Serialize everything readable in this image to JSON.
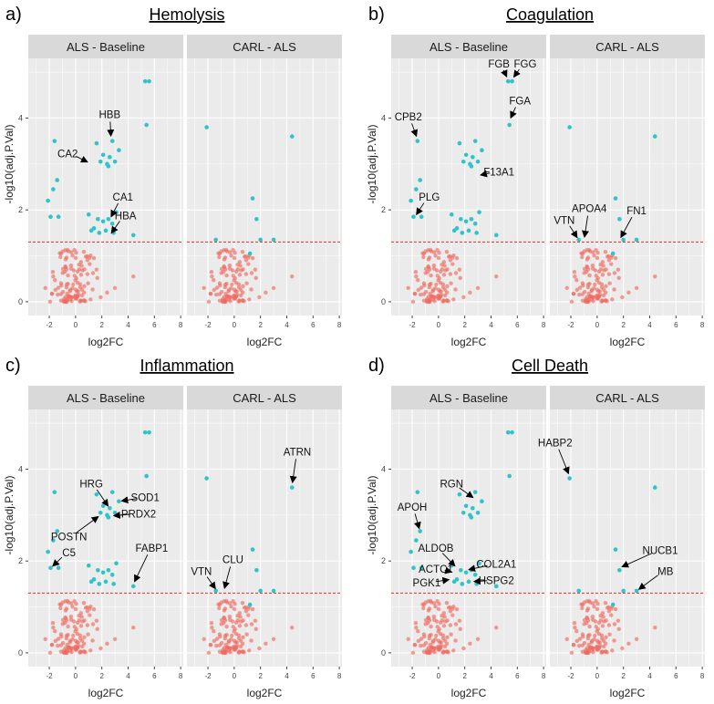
{
  "colors": {
    "sig": "#2ec4c8",
    "nonsig": "#ee6a60",
    "threshold": "#e0302a",
    "panel_bg": "#ebebeb",
    "strip_bg": "#d9d9d9",
    "grid": "#ffffff"
  },
  "facet_labels": [
    "ALS - Baseline",
    "CARL - ALS"
  ],
  "threshold_y": 1.3,
  "chart_data": [
    {
      "type": "scatter",
      "letter": "a)",
      "title": "Hemolysis",
      "xlabel": "log2FC",
      "ylabel": "-log10(adj.P.Val)",
      "xlim": [
        -3.6,
        8.2
      ],
      "ylim": [
        -0.3,
        5.3
      ],
      "xticks": [
        -2,
        0,
        2,
        4,
        6,
        8
      ],
      "yticks": [
        0,
        2,
        4
      ],
      "facets": [
        {
          "label": "ALS - Baseline",
          "points": [
            [
              5.3,
              4.8
            ],
            [
              5.6,
              4.8
            ],
            [
              5.4,
              3.85
            ],
            [
              -1.6,
              3.5
            ],
            [
              1.6,
              3.45
            ],
            [
              2.8,
              3.5
            ],
            [
              3.3,
              3.3
            ],
            [
              2.1,
              3.2
            ],
            [
              2.6,
              3.15
            ],
            [
              3.0,
              3.05
            ],
            [
              -1.4,
              2.65
            ],
            [
              -1.7,
              2.45
            ],
            [
              2.4,
              3.0
            ],
            [
              1.9,
              3.05
            ],
            [
              2.5,
              2.95
            ],
            [
              -2.1,
              2.2
            ],
            [
              -1.9,
              1.85
            ],
            [
              -1.3,
              1.85
            ],
            [
              1.0,
              1.9
            ],
            [
              1.4,
              1.6
            ],
            [
              1.7,
              1.8
            ],
            [
              2.1,
              1.75
            ],
            [
              2.5,
              1.8
            ],
            [
              2.8,
              1.7
            ],
            [
              1.2,
              1.55
            ],
            [
              1.8,
              1.5
            ],
            [
              2.3,
              1.55
            ],
            [
              2.9,
              1.5
            ],
            [
              3.1,
              1.95
            ],
            [
              4.4,
              1.45
            ]
          ],
          "labels": [
            {
              "text": "HBB",
              "x": 2.6,
              "y": 4.0,
              "tx": 2.7,
              "ty": 3.55
            },
            {
              "text": "CA2",
              "x": -0.6,
              "y": 3.15,
              "tx": 1.1,
              "ty": 3.02
            },
            {
              "text": "CA1",
              "x": 3.6,
              "y": 2.2,
              "tx": 2.6,
              "ty": 1.8
            },
            {
              "text": "HBA",
              "x": 3.8,
              "y": 1.8,
              "tx": 2.6,
              "ty": 1.45
            }
          ]
        },
        {
          "label": "CARL - ALS",
          "points": [
            [
              -2.1,
              3.8
            ],
            [
              4.4,
              3.6
            ],
            [
              1.4,
              2.25
            ],
            [
              1.7,
              1.8
            ],
            [
              2.0,
              1.35
            ],
            [
              3.0,
              1.35
            ],
            [
              1.2,
              1.05
            ],
            [
              -1.4,
              1.35
            ]
          ],
          "labels": []
        }
      ]
    },
    {
      "type": "scatter",
      "letter": "b)",
      "title": "Coagulation",
      "xlabel": "log2FC",
      "ylabel": "-log10(adj.P.Val)",
      "xlim": [
        -3.6,
        8.2
      ],
      "ylim": [
        -0.3,
        5.3
      ],
      "xticks": [
        -2,
        0,
        2,
        4,
        6,
        8
      ],
      "yticks": [
        0,
        2,
        4
      ],
      "facets": [
        {
          "label": "ALS - Baseline",
          "points": [
            [
              5.3,
              4.8
            ],
            [
              5.6,
              4.8
            ],
            [
              5.4,
              3.85
            ],
            [
              -1.6,
              3.5
            ],
            [
              1.6,
              3.45
            ],
            [
              2.8,
              3.5
            ],
            [
              3.3,
              3.3
            ],
            [
              2.1,
              3.2
            ],
            [
              2.6,
              3.15
            ],
            [
              3.0,
              3.05
            ],
            [
              -1.4,
              2.65
            ],
            [
              -1.7,
              2.45
            ],
            [
              2.4,
              3.0
            ],
            [
              1.9,
              3.05
            ],
            [
              2.5,
              2.95
            ],
            [
              -2.1,
              2.2
            ],
            [
              -1.9,
              1.85
            ],
            [
              -1.3,
              1.85
            ],
            [
              1.0,
              1.9
            ],
            [
              1.4,
              1.6
            ],
            [
              1.7,
              1.8
            ],
            [
              2.1,
              1.75
            ],
            [
              2.5,
              1.8
            ],
            [
              2.8,
              1.7
            ],
            [
              1.2,
              1.55
            ],
            [
              1.8,
              1.5
            ],
            [
              2.3,
              1.55
            ],
            [
              2.9,
              1.5
            ],
            [
              3.1,
              1.95
            ],
            [
              4.4,
              1.45
            ]
          ],
          "labels": [
            {
              "text": "FGB",
              "x": 4.6,
              "y": 5.1,
              "tx": 5.3,
              "ty": 4.85
            },
            {
              "text": "FGG",
              "x": 6.6,
              "y": 5.1,
              "tx": 5.6,
              "ty": 4.85
            },
            {
              "text": "FGA",
              "x": 6.2,
              "y": 4.3,
              "tx": 5.4,
              "ty": 3.95
            },
            {
              "text": "CPB2",
              "x": -2.3,
              "y": 3.95,
              "tx": -1.6,
              "ty": 3.55
            },
            {
              "text": "F13A1",
              "x": 4.6,
              "y": 2.75,
              "tx": 3.0,
              "ty": 2.75
            },
            {
              "text": "PLG",
              "x": -0.7,
              "y": 2.2,
              "tx": -1.8,
              "ty": 1.85
            }
          ]
        },
        {
          "label": "CARL - ALS",
          "points": [
            [
              -2.1,
              3.8
            ],
            [
              4.4,
              3.6
            ],
            [
              1.4,
              2.25
            ],
            [
              1.7,
              1.8
            ],
            [
              2.0,
              1.35
            ],
            [
              3.0,
              1.35
            ],
            [
              1.2,
              1.05
            ],
            [
              -1.4,
              1.35
            ]
          ],
          "labels": [
            {
              "text": "APOA4",
              "x": -0.6,
              "y": 1.95,
              "tx": -1.0,
              "ty": 1.35
            },
            {
              "text": "VTN",
              "x": -2.5,
              "y": 1.7,
              "tx": -1.4,
              "ty": 1.35
            },
            {
              "text": "FN1",
              "x": 3.0,
              "y": 1.9,
              "tx": 1.7,
              "ty": 1.35
            }
          ]
        }
      ]
    },
    {
      "type": "scatter",
      "letter": "c)",
      "title": "Inflammation",
      "xlabel": "log2FC",
      "ylabel": "-log10(adj.P.Val)",
      "xlim": [
        -3.6,
        8.2
      ],
      "ylim": [
        -0.3,
        5.3
      ],
      "xticks": [
        -2,
        0,
        2,
        4,
        6,
        8
      ],
      "yticks": [
        0,
        2,
        4
      ],
      "facets": [
        {
          "label": "ALS - Baseline",
          "points": [
            [
              5.3,
              4.8
            ],
            [
              5.6,
              4.8
            ],
            [
              5.4,
              3.85
            ],
            [
              -1.6,
              3.5
            ],
            [
              1.6,
              3.45
            ],
            [
              2.8,
              3.5
            ],
            [
              3.3,
              3.3
            ],
            [
              2.1,
              3.2
            ],
            [
              2.6,
              3.15
            ],
            [
              3.0,
              3.05
            ],
            [
              -1.4,
              2.65
            ],
            [
              -1.7,
              2.45
            ],
            [
              2.4,
              3.0
            ],
            [
              1.9,
              3.05
            ],
            [
              2.5,
              2.95
            ],
            [
              -2.1,
              2.2
            ],
            [
              -1.9,
              1.85
            ],
            [
              -1.3,
              1.85
            ],
            [
              1.0,
              1.9
            ],
            [
              1.4,
              1.6
            ],
            [
              1.7,
              1.8
            ],
            [
              2.1,
              1.75
            ],
            [
              2.5,
              1.8
            ],
            [
              2.8,
              1.7
            ],
            [
              1.2,
              1.55
            ],
            [
              1.8,
              1.5
            ],
            [
              2.3,
              1.55
            ],
            [
              2.9,
              1.5
            ],
            [
              3.1,
              1.95
            ],
            [
              4.4,
              1.45
            ]
          ],
          "labels": [
            {
              "text": "HRG",
              "x": 1.2,
              "y": 3.6,
              "tx": 2.6,
              "ty": 3.15
            },
            {
              "text": "SOD1",
              "x": 5.3,
              "y": 3.3,
              "tx": 3.3,
              "ty": 3.3
            },
            {
              "text": "PRDX2",
              "x": 4.8,
              "y": 2.95,
              "tx": 2.7,
              "ty": 2.98
            },
            {
              "text": "POSTN",
              "x": -0.5,
              "y": 2.45,
              "tx": 1.9,
              "ty": 3.0
            },
            {
              "text": "C5",
              "x": -0.5,
              "y": 2.1,
              "tx": -1.9,
              "ty": 1.85
            },
            {
              "text": "FABP1",
              "x": 5.8,
              "y": 2.2,
              "tx": 4.4,
              "ty": 1.5
            }
          ]
        },
        {
          "label": "CARL - ALS",
          "points": [
            [
              -2.1,
              3.8
            ],
            [
              4.4,
              3.6
            ],
            [
              1.4,
              2.25
            ],
            [
              1.7,
              1.8
            ],
            [
              2.0,
              1.35
            ],
            [
              3.0,
              1.35
            ],
            [
              1.2,
              1.05
            ],
            [
              -1.4,
              1.35
            ]
          ],
          "labels": [
            {
              "text": "ATRN",
              "x": 4.8,
              "y": 4.3,
              "tx": 4.4,
              "ty": 3.65
            },
            {
              "text": "CLU",
              "x": -0.1,
              "y": 1.95,
              "tx": -0.8,
              "ty": 1.35
            },
            {
              "text": "VTN",
              "x": -2.5,
              "y": 1.7,
              "tx": -1.3,
              "ty": 1.35
            }
          ]
        }
      ]
    },
    {
      "type": "scatter",
      "letter": "d)",
      "title": "Cell Death",
      "xlabel": "log2FC",
      "ylabel": "-log10(adj.P.Val)",
      "xlim": [
        -3.6,
        8.2
      ],
      "ylim": [
        -0.3,
        5.3
      ],
      "xticks": [
        -2,
        0,
        2,
        4,
        6,
        8
      ],
      "yticks": [
        0,
        2,
        4
      ],
      "facets": [
        {
          "label": "ALS - Baseline",
          "points": [
            [
              5.3,
              4.8
            ],
            [
              5.6,
              4.8
            ],
            [
              5.4,
              3.85
            ],
            [
              -1.6,
              3.5
            ],
            [
              1.6,
              3.45
            ],
            [
              2.8,
              3.5
            ],
            [
              3.3,
              3.3
            ],
            [
              2.1,
              3.2
            ],
            [
              2.6,
              3.15
            ],
            [
              3.0,
              3.05
            ],
            [
              -1.4,
              2.65
            ],
            [
              -1.7,
              2.45
            ],
            [
              2.4,
              3.0
            ],
            [
              1.9,
              3.05
            ],
            [
              2.5,
              2.95
            ],
            [
              -2.1,
              2.2
            ],
            [
              -1.9,
              1.85
            ],
            [
              -1.3,
              1.85
            ],
            [
              1.0,
              1.9
            ],
            [
              1.4,
              1.6
            ],
            [
              1.7,
              1.8
            ],
            [
              2.1,
              1.75
            ],
            [
              2.5,
              1.8
            ],
            [
              2.8,
              1.7
            ],
            [
              1.2,
              1.55
            ],
            [
              1.8,
              1.5
            ],
            [
              2.3,
              1.55
            ],
            [
              2.9,
              1.5
            ],
            [
              3.1,
              1.95
            ],
            [
              4.4,
              1.45
            ]
          ],
          "labels": [
            {
              "text": "RGN",
              "x": 1.0,
              "y": 3.6,
              "tx": 2.8,
              "ty": 3.35
            },
            {
              "text": "APOH",
              "x": -2.0,
              "y": 3.1,
              "tx": -1.4,
              "ty": 2.65
            },
            {
              "text": "ALDOB",
              "x": -0.2,
              "y": 2.2,
              "tx": 1.4,
              "ty": 1.85
            },
            {
              "text": "COL2A1",
              "x": 4.4,
              "y": 1.85,
              "tx": 2.1,
              "ty": 1.8
            },
            {
              "text": "ACTC1",
              "x": -0.2,
              "y": 1.75,
              "tx": 1.2,
              "ty": 1.75
            },
            {
              "text": "HSPG2",
              "x": 4.4,
              "y": 1.5,
              "tx": 2.5,
              "ty": 1.55
            },
            {
              "text": "PGK1",
              "x": -0.9,
              "y": 1.45,
              "tx": 1.0,
              "ty": 1.6
            }
          ]
        },
        {
          "label": "CARL - ALS",
          "points": [
            [
              -2.1,
              3.8
            ],
            [
              4.4,
              3.6
            ],
            [
              1.4,
              2.25
            ],
            [
              1.7,
              1.8
            ],
            [
              2.0,
              1.35
            ],
            [
              3.0,
              1.35
            ],
            [
              1.2,
              1.05
            ],
            [
              -1.4,
              1.35
            ]
          ],
          "labels": [
            {
              "text": "HABP2",
              "x": -3.2,
              "y": 4.5,
              "tx": -2.1,
              "ty": 3.85
            },
            {
              "text": "NUCB1",
              "x": 4.8,
              "y": 2.15,
              "tx": 1.7,
              "ty": 1.85
            },
            {
              "text": "MB",
              "x": 5.2,
              "y": 1.7,
              "tx": 3.0,
              "ty": 1.35
            }
          ]
        }
      ]
    }
  ]
}
